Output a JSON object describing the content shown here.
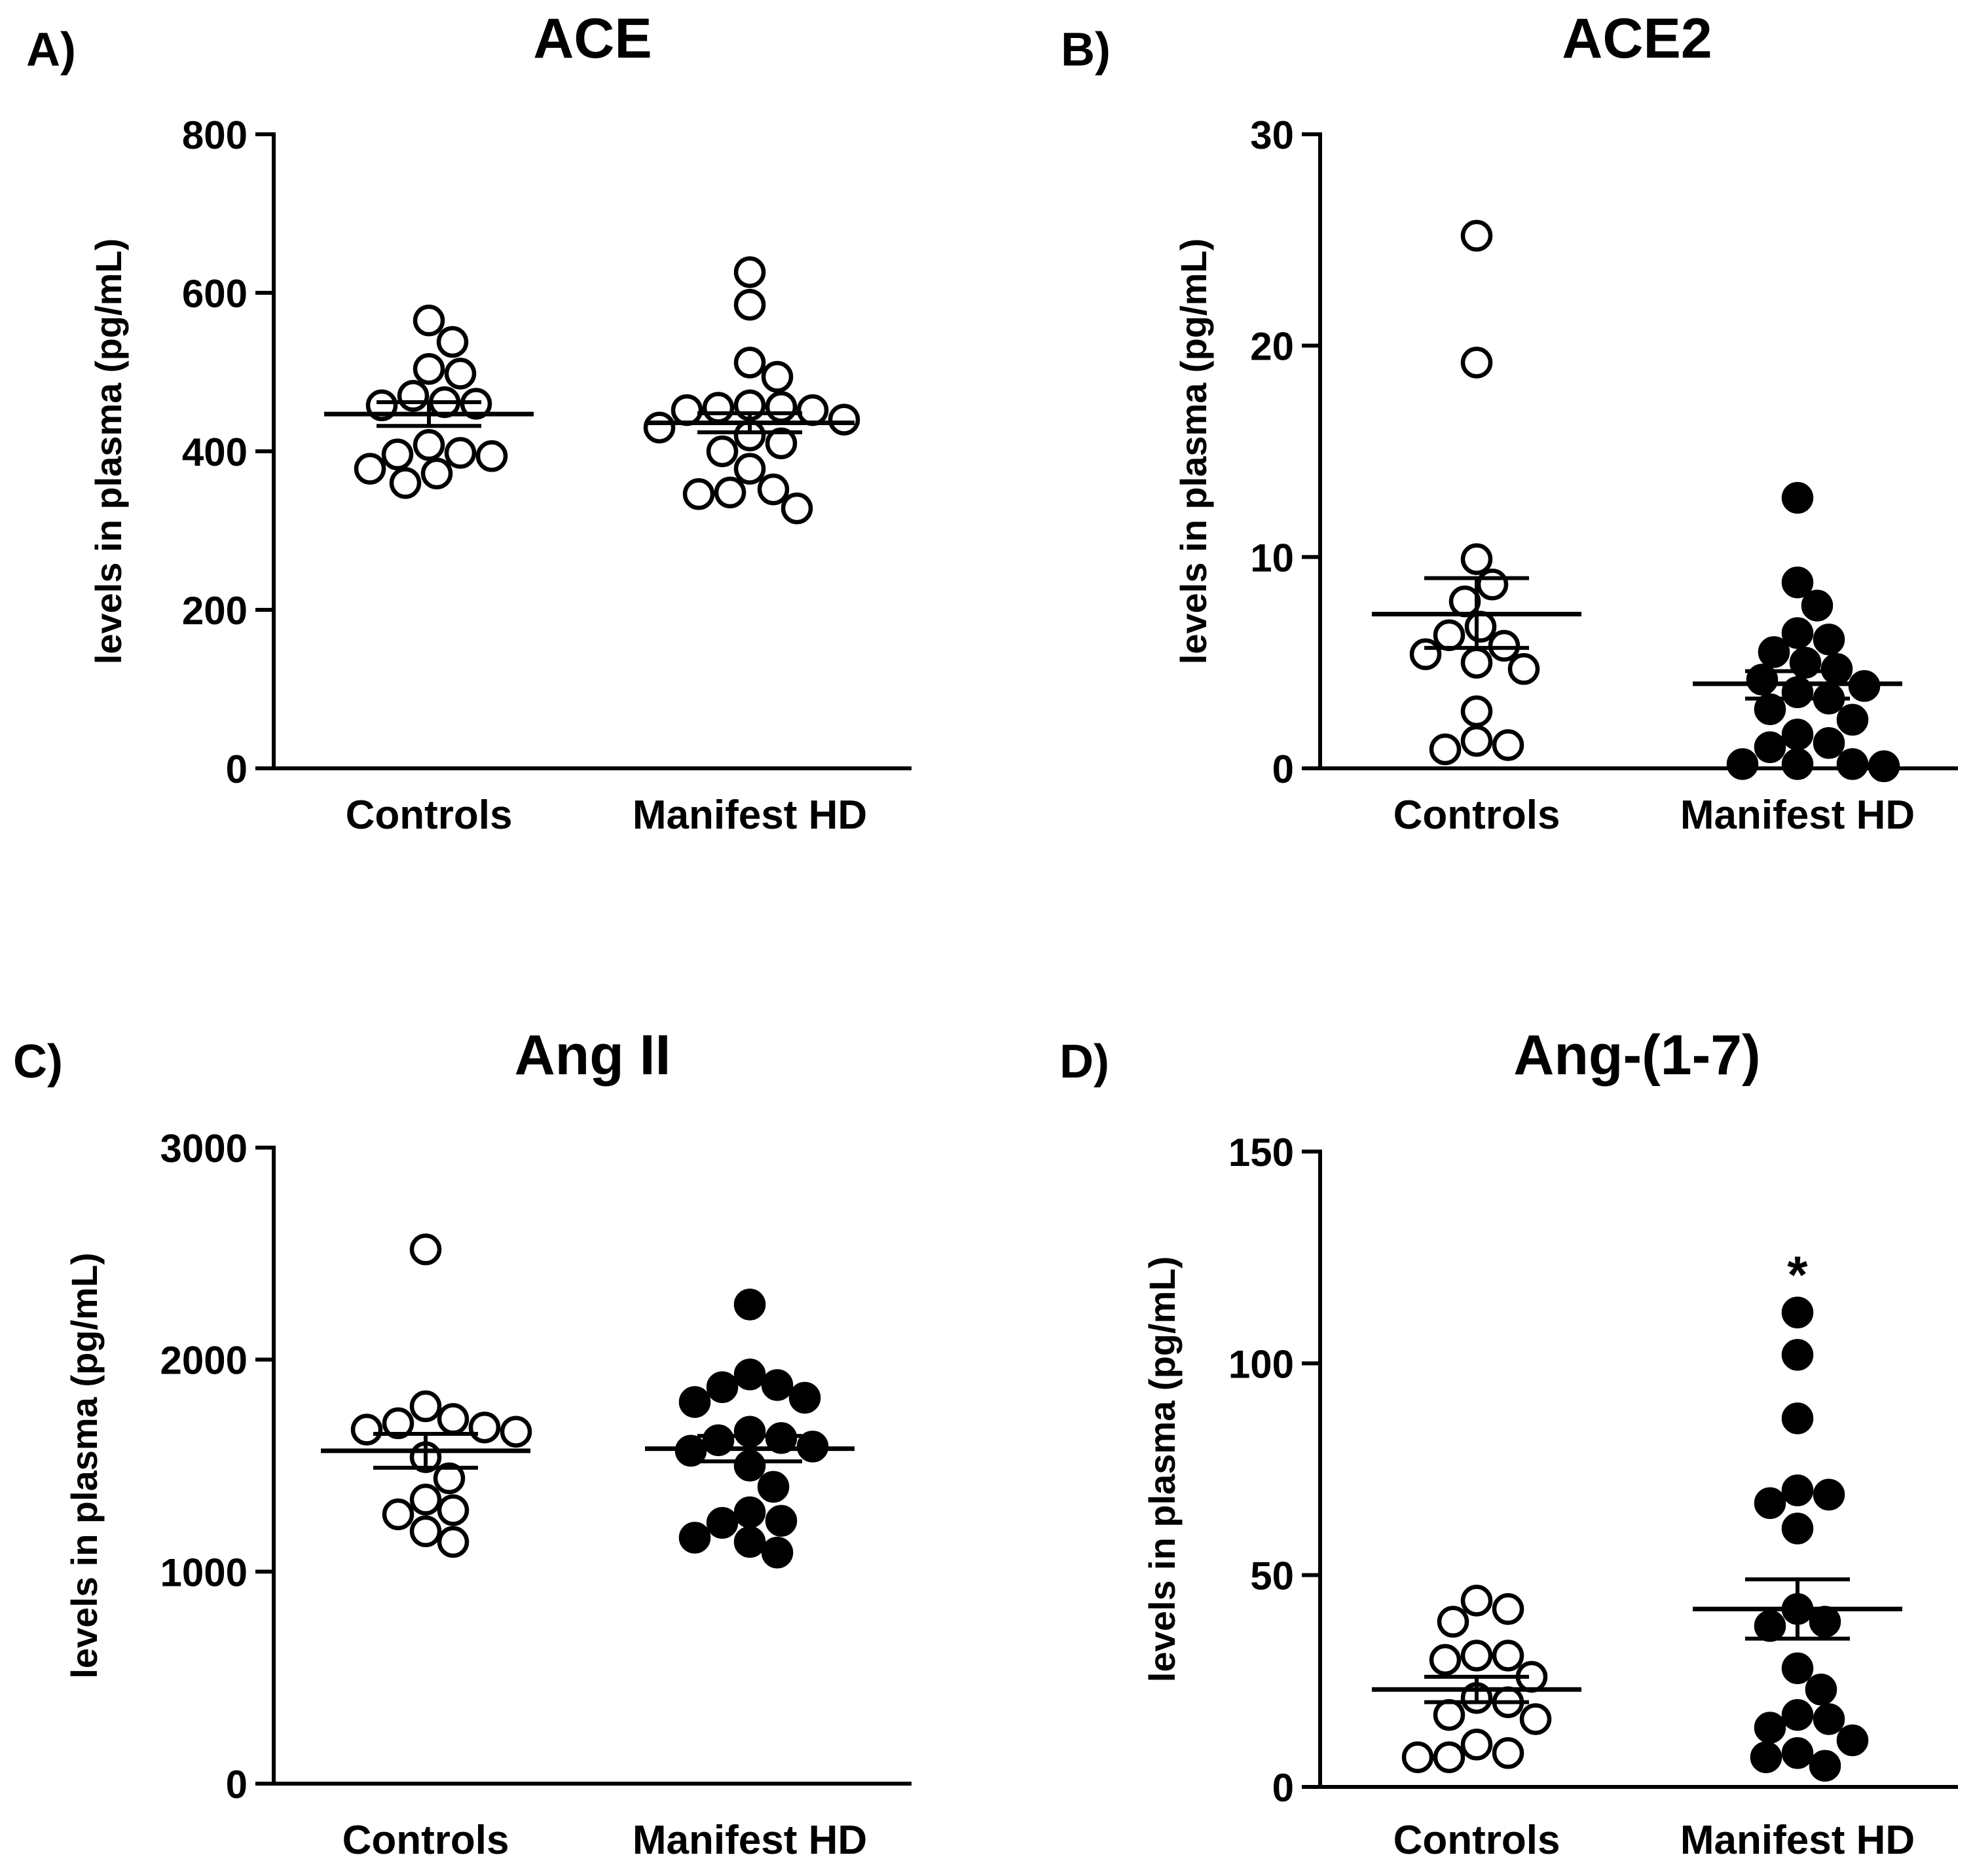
{
  "chart_data": [
    {
      "type": "scatter",
      "panel_label": "A)",
      "title": "ACE",
      "xlabel": "",
      "ylabel": "levels in plasma (pg/mL)",
      "ylim": [
        0,
        800
      ],
      "yticks": [
        "0",
        "200",
        "400",
        "600",
        "800"
      ],
      "categories": [
        "Controls",
        "Manifest HD"
      ],
      "series": [
        {
          "category": "Controls",
          "filled": false,
          "mean": 447,
          "sem_low": 432,
          "sem_high": 462,
          "values": [
            498,
            538,
            565,
            504,
            470,
            462,
            460,
            458,
            408,
            398,
            396,
            394,
            378,
            372,
            360
          ]
        },
        {
          "category": "Manifest HD",
          "filled": false,
          "mean": 436,
          "sem_low": 424,
          "sem_high": 448,
          "values": [
            626,
            585,
            512,
            494,
            458,
            456,
            455,
            452,
            452,
            440,
            430,
            420,
            410,
            400,
            378,
            352,
            348,
            346,
            328
          ]
        }
      ]
    },
    {
      "type": "scatter",
      "panel_label": "B)",
      "title": "ACE2",
      "xlabel": "",
      "ylabel": "levels in plasma (pg/mL)",
      "ylim": [
        0,
        30
      ],
      "yticks": [
        "0",
        "10",
        "20",
        "30"
      ],
      "categories": [
        "Controls",
        "Manifest HD"
      ],
      "series": [
        {
          "category": "Controls",
          "filled": false,
          "mean": 7.3,
          "sem_low": 5.7,
          "sem_high": 9.0,
          "values": [
            25.2,
            19.2,
            9.9,
            8.7,
            7.9,
            6.7,
            6.3,
            5.8,
            5.4,
            5.0,
            4.7,
            2.7,
            1.3,
            1.1,
            0.9
          ]
        },
        {
          "category": "Manifest HD",
          "filled": true,
          "mean": 4.0,
          "sem_low": 3.3,
          "sem_high": 4.6,
          "values": [
            12.8,
            8.8,
            7.7,
            6.4,
            6.1,
            5.5,
            5.0,
            4.7,
            4.2,
            3.9,
            3.6,
            3.3,
            2.8,
            2.3,
            1.6,
            1.2,
            1.0,
            0.2,
            0.2,
            0.2,
            0.1
          ]
        }
      ]
    },
    {
      "type": "scatter",
      "panel_label": "C)",
      "title": "Ang II",
      "xlabel": "",
      "ylabel": "levels in plasma (pg/mL)",
      "ylim": [
        0,
        3000
      ],
      "yticks": [
        "0",
        "1000",
        "2000",
        "3000"
      ],
      "categories": [
        "Controls",
        "Manifest HD"
      ],
      "series": [
        {
          "category": "Controls",
          "filled": false,
          "mean": 1570,
          "sem_low": 1490,
          "sem_high": 1650,
          "values": [
            2520,
            1780,
            1720,
            1700,
            1680,
            1670,
            1660,
            1540,
            1440,
            1340,
            1290,
            1270,
            1190,
            1140
          ]
        },
        {
          "category": "Manifest HD",
          "filled": true,
          "mean": 1580,
          "sem_low": 1520,
          "sem_high": 1640,
          "values": [
            2260,
            1930,
            1880,
            1870,
            1820,
            1800,
            1660,
            1630,
            1620,
            1590,
            1570,
            1500,
            1400,
            1280,
            1240,
            1230,
            1160,
            1140,
            1090
          ]
        }
      ]
    },
    {
      "type": "scatter",
      "panel_label": "D)",
      "title": "Ang-(1-7)",
      "xlabel": "",
      "ylabel": "levels in plasma (pg/mL)",
      "ylim": [
        0,
        150
      ],
      "yticks": [
        "0",
        "50",
        "100",
        "150"
      ],
      "categories": [
        "Controls",
        "Manifest HD"
      ],
      "annotation": "*",
      "series": [
        {
          "category": "Controls",
          "filled": false,
          "mean": 23,
          "sem_low": 20,
          "sem_high": 26,
          "values": [
            44,
            42,
            39,
            31,
            31,
            30,
            26,
            21,
            20,
            17,
            16,
            10,
            8,
            7,
            7
          ]
        },
        {
          "category": "Manifest HD",
          "filled": true,
          "mean": 42,
          "sem_low": 35,
          "sem_high": 49,
          "values": [
            112,
            102,
            87,
            70,
            69,
            67,
            61,
            42,
            39,
            38,
            28,
            23,
            17,
            16,
            14,
            11,
            8,
            7,
            5
          ]
        }
      ]
    }
  ]
}
